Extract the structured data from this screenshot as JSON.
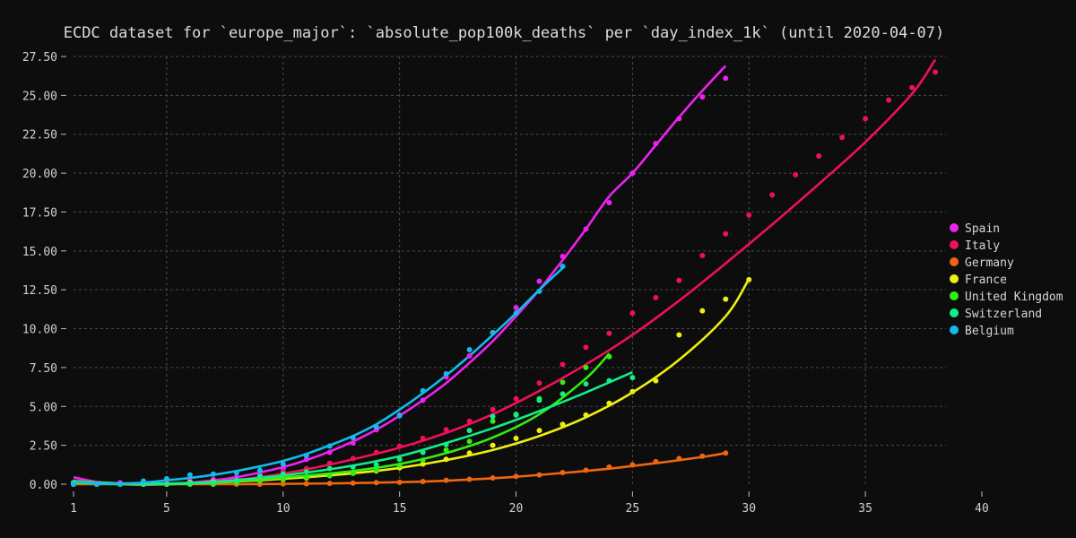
{
  "chart_data": {
    "type": "scatter",
    "title": "ECDC dataset for `europe_major`: `absolute_pop100k_deaths` per `day_index_1k` (until 2020-04-07)",
    "xlabel": "",
    "ylabel": "",
    "xlim": [
      1,
      40
    ],
    "ylim": [
      0,
      27.5
    ],
    "xticks": [
      1,
      5,
      10,
      15,
      20,
      25,
      30,
      35,
      40
    ],
    "yticks": [
      "0.00",
      "2.50",
      "5.00",
      "7.50",
      "10.00",
      "12.50",
      "15.00",
      "17.50",
      "20.00",
      "22.50",
      "25.00",
      "27.50"
    ],
    "grid": true,
    "legend_position": "right",
    "series": [
      {
        "name": "Spain",
        "color": "#ee22ee",
        "x": [
          1,
          2,
          3,
          4,
          5,
          6,
          7,
          8,
          9,
          10,
          11,
          12,
          13,
          14,
          15,
          16,
          17,
          18,
          19,
          20,
          21,
          22,
          23,
          24,
          25,
          26,
          27,
          28,
          29
        ],
        "y": [
          0.05,
          0.05,
          0.1,
          0.1,
          0.15,
          0.2,
          0.3,
          0.45,
          0.6,
          1.0,
          1.6,
          2.05,
          2.65,
          3.5,
          4.45,
          5.4,
          6.9,
          8.25,
          9.75,
          11.35,
          13.05,
          14.65,
          16.4,
          18.1,
          20.0,
          21.9,
          23.5,
          24.9,
          26.1
        ],
        "fit": [
          [
            1,
            0.45
          ],
          [
            2,
            0.15
          ],
          [
            3,
            0.0
          ],
          [
            4,
            -0.05
          ],
          [
            5,
            0.0
          ],
          [
            6,
            0.1
          ],
          [
            7,
            0.25
          ],
          [
            8,
            0.45
          ],
          [
            9,
            0.75
          ],
          [
            10,
            1.1
          ],
          [
            11,
            1.55
          ],
          [
            12,
            2.1
          ],
          [
            13,
            2.75
          ],
          [
            14,
            3.5
          ],
          [
            15,
            4.4
          ],
          [
            16,
            5.4
          ],
          [
            17,
            6.5
          ],
          [
            18,
            7.8
          ],
          [
            19,
            9.2
          ],
          [
            20,
            10.8
          ],
          [
            21,
            12.5
          ],
          [
            22,
            14.4
          ],
          [
            23,
            16.4
          ],
          [
            24,
            18.5
          ],
          [
            25,
            20.0
          ],
          [
            26,
            21.8
          ],
          [
            27,
            23.6
          ],
          [
            28,
            25.3
          ],
          [
            29,
            26.9
          ]
        ]
      },
      {
        "name": "Italy",
        "color": "#ee1155",
        "x": [
          1,
          2,
          3,
          4,
          5,
          6,
          7,
          8,
          9,
          10,
          11,
          12,
          13,
          14,
          15,
          16,
          17,
          18,
          19,
          20,
          21,
          22,
          23,
          24,
          25,
          26,
          27,
          28,
          29,
          30,
          31,
          32,
          33,
          34,
          35,
          36,
          37,
          38
        ],
        "y": [
          0.0,
          0.0,
          0.0,
          0.0,
          0.05,
          0.05,
          0.1,
          0.2,
          0.4,
          0.8,
          1.0,
          1.35,
          1.65,
          2.05,
          2.45,
          2.95,
          3.5,
          4.05,
          4.8,
          5.5,
          6.5,
          7.7,
          8.8,
          9.7,
          11.0,
          12.0,
          13.1,
          14.7,
          16.1,
          17.3,
          18.6,
          19.9,
          21.1,
          22.3,
          23.5,
          24.7,
          25.5,
          26.5
        ],
        "fit": [
          [
            1,
            0.25
          ],
          [
            3,
            0.05
          ],
          [
            5,
            0.0
          ],
          [
            7,
            0.15
          ],
          [
            9,
            0.45
          ],
          [
            11,
            0.95
          ],
          [
            13,
            1.6
          ],
          [
            15,
            2.35
          ],
          [
            17,
            3.3
          ],
          [
            19,
            4.5
          ],
          [
            21,
            6.0
          ],
          [
            23,
            7.7
          ],
          [
            25,
            9.6
          ],
          [
            27,
            11.8
          ],
          [
            29,
            14.2
          ],
          [
            31,
            16.7
          ],
          [
            33,
            19.3
          ],
          [
            35,
            22.0
          ],
          [
            37,
            25.1
          ],
          [
            38,
            27.3
          ]
        ]
      },
      {
        "name": "Germany",
        "color": "#ee6611",
        "x": [
          1,
          2,
          3,
          4,
          5,
          6,
          7,
          8,
          9,
          10,
          11,
          12,
          13,
          14,
          15,
          16,
          17,
          18,
          19,
          20,
          21,
          22,
          23,
          24,
          25,
          26,
          27,
          28,
          29
        ],
        "y": [
          0.0,
          0.0,
          0.0,
          0.0,
          0.0,
          0.0,
          0.0,
          0.0,
          0.0,
          0.02,
          0.03,
          0.05,
          0.07,
          0.1,
          0.12,
          0.17,
          0.25,
          0.32,
          0.4,
          0.5,
          0.6,
          0.75,
          0.9,
          1.1,
          1.25,
          1.45,
          1.65,
          1.8,
          2.0
        ],
        "fit": [
          [
            1,
            0.0
          ],
          [
            5,
            0.0
          ],
          [
            8,
            0.0
          ],
          [
            10,
            0.02
          ],
          [
            12,
            0.05
          ],
          [
            14,
            0.1
          ],
          [
            16,
            0.17
          ],
          [
            18,
            0.3
          ],
          [
            20,
            0.48
          ],
          [
            22,
            0.72
          ],
          [
            24,
            1.0
          ],
          [
            26,
            1.35
          ],
          [
            28,
            1.75
          ],
          [
            29,
            2.0
          ]
        ]
      },
      {
        "name": "France",
        "color": "#eeee11",
        "x": [
          1,
          2,
          3,
          4,
          5,
          6,
          7,
          8,
          9,
          10,
          11,
          12,
          13,
          14,
          15,
          16,
          17,
          18,
          19,
          20,
          21,
          22,
          23,
          24,
          25,
          26,
          27,
          28,
          29,
          30
        ],
        "y": [
          0.1,
          0.0,
          0.0,
          0.0,
          0.0,
          0.1,
          0.15,
          0.2,
          0.25,
          0.3,
          0.4,
          0.55,
          0.7,
          0.85,
          1.05,
          1.3,
          1.6,
          2.0,
          2.5,
          2.95,
          3.45,
          3.85,
          4.45,
          5.2,
          5.95,
          6.65,
          9.6,
          11.15,
          11.9,
          13.15
        ],
        "fit": [
          [
            1,
            0.2
          ],
          [
            3,
            0.05
          ],
          [
            5,
            0.0
          ],
          [
            7,
            0.1
          ],
          [
            9,
            0.25
          ],
          [
            11,
            0.45
          ],
          [
            13,
            0.7
          ],
          [
            15,
            1.05
          ],
          [
            17,
            1.55
          ],
          [
            19,
            2.2
          ],
          [
            21,
            3.1
          ],
          [
            23,
            4.3
          ],
          [
            25,
            5.9
          ],
          [
            27,
            8.0
          ],
          [
            29,
            10.8
          ],
          [
            30,
            13.2
          ]
        ]
      },
      {
        "name": "United Kingdom",
        "color": "#33ee11",
        "x": [
          1,
          2,
          3,
          4,
          5,
          6,
          7,
          8,
          9,
          10,
          11,
          12,
          13,
          14,
          15,
          16,
          17,
          18,
          19,
          20,
          21,
          22,
          23,
          24
        ],
        "y": [
          0.0,
          0.0,
          0.0,
          0.0,
          0.0,
          0.0,
          0.0,
          0.1,
          0.2,
          0.3,
          0.45,
          0.55,
          0.7,
          0.9,
          1.2,
          1.55,
          2.2,
          2.75,
          4.05,
          4.5,
          5.5,
          6.55,
          7.5,
          8.2
        ],
        "fit": [
          [
            1,
            0.1
          ],
          [
            3,
            0.0
          ],
          [
            5,
            0.0
          ],
          [
            7,
            0.1
          ],
          [
            9,
            0.3
          ],
          [
            11,
            0.55
          ],
          [
            13,
            0.85
          ],
          [
            15,
            1.3
          ],
          [
            17,
            2.0
          ],
          [
            19,
            3.0
          ],
          [
            21,
            4.5
          ],
          [
            23,
            6.8
          ],
          [
            24,
            8.4
          ]
        ]
      },
      {
        "name": "Switzerland",
        "color": "#11ee88",
        "x": [
          1,
          2,
          3,
          4,
          5,
          6,
          7,
          8,
          9,
          10,
          11,
          12,
          13,
          14,
          15,
          16,
          17,
          18,
          19,
          20,
          21,
          22,
          23,
          24,
          25
        ],
        "y": [
          0.1,
          0.0,
          0.0,
          0.0,
          0.0,
          0.05,
          0.1,
          0.25,
          0.5,
          0.65,
          0.8,
          1.0,
          1.1,
          1.25,
          1.6,
          2.05,
          2.55,
          3.45,
          4.35,
          4.45,
          5.4,
          5.8,
          6.45,
          6.65,
          6.85
        ],
        "fit": [
          [
            1,
            0.2
          ],
          [
            3,
            0.05
          ],
          [
            5,
            0.05
          ],
          [
            7,
            0.15
          ],
          [
            9,
            0.4
          ],
          [
            11,
            0.75
          ],
          [
            13,
            1.2
          ],
          [
            15,
            1.8
          ],
          [
            17,
            2.65
          ],
          [
            19,
            3.6
          ],
          [
            21,
            4.7
          ],
          [
            23,
            5.9
          ],
          [
            25,
            7.2
          ]
        ]
      },
      {
        "name": "Belgium",
        "color": "#11bbee",
        "x": [
          1,
          2,
          3,
          4,
          5,
          6,
          7,
          8,
          9,
          10,
          11,
          12,
          13,
          14,
          15,
          16,
          17,
          18,
          19,
          20,
          21,
          22
        ],
        "y": [
          0.0,
          0.0,
          0.0,
          0.2,
          0.35,
          0.6,
          0.65,
          0.75,
          0.9,
          1.3,
          1.85,
          2.45,
          3.0,
          3.7,
          4.4,
          6.0,
          7.1,
          8.65,
          9.75,
          11.0,
          12.4,
          14.0
        ],
        "fit": [
          [
            1,
            0.2
          ],
          [
            2,
            0.05
          ],
          [
            3,
            0.05
          ],
          [
            4,
            0.1
          ],
          [
            5,
            0.25
          ],
          [
            6,
            0.4
          ],
          [
            7,
            0.6
          ],
          [
            8,
            0.85
          ],
          [
            9,
            1.15
          ],
          [
            10,
            1.5
          ],
          [
            11,
            1.95
          ],
          [
            12,
            2.5
          ],
          [
            13,
            3.1
          ],
          [
            14,
            3.85
          ],
          [
            15,
            4.8
          ],
          [
            16,
            5.85
          ],
          [
            17,
            7.0
          ],
          [
            18,
            8.25
          ],
          [
            19,
            9.6
          ],
          [
            20,
            11.0
          ],
          [
            21,
            12.5
          ],
          [
            22,
            13.9
          ]
        ]
      }
    ]
  }
}
